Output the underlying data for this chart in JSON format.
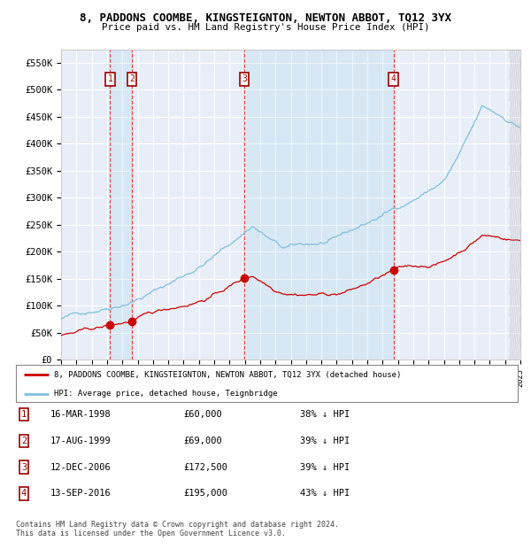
{
  "title": "8, PADDONS COOMBE, KINGSTEIGNTON, NEWTON ABBOT, TQ12 3YX",
  "subtitle": "Price paid vs. HM Land Registry's House Price Index (HPI)",
  "ylim": [
    0,
    575000
  ],
  "yticks": [
    0,
    50000,
    100000,
    150000,
    200000,
    250000,
    300000,
    350000,
    400000,
    450000,
    500000,
    550000
  ],
  "ytick_labels": [
    "£0",
    "£50K",
    "£100K",
    "£150K",
    "£200K",
    "£250K",
    "£300K",
    "£350K",
    "£400K",
    "£450K",
    "£500K",
    "£550K"
  ],
  "bg_color": "#ffffff",
  "plot_bg_color": "#e8eef8",
  "grid_color": "#ffffff",
  "hpi_color": "#7fbfdf",
  "price_color": "#cc0000",
  "t_years": [
    1998.208,
    1999.625,
    2006.958,
    2016.708
  ],
  "t_prices": [
    60000,
    69000,
    172500,
    195000
  ],
  "t_labels": [
    "1",
    "2",
    "3",
    "4"
  ],
  "legend_entries": [
    "8, PADDONS COOMBE, KINGSTEIGNTON, NEWTON ABBOT, TQ12 3YX (detached house)",
    "HPI: Average price, detached house, Teignbridge"
  ],
  "table_rows": [
    [
      "1",
      "16-MAR-1998",
      "£60,000",
      "38% ↓ HPI"
    ],
    [
      "2",
      "17-AUG-1999",
      "£69,000",
      "39% ↓ HPI"
    ],
    [
      "3",
      "12-DEC-2006",
      "£172,500",
      "39% ↓ HPI"
    ],
    [
      "4",
      "13-SEP-2016",
      "£195,000",
      "43% ↓ HPI"
    ]
  ],
  "footnote": "Contains HM Land Registry data © Crown copyright and database right 2024.\nThis data is licensed under the Open Government Licence v3.0.",
  "x_start_year": 1995,
  "x_end_year": 2025
}
